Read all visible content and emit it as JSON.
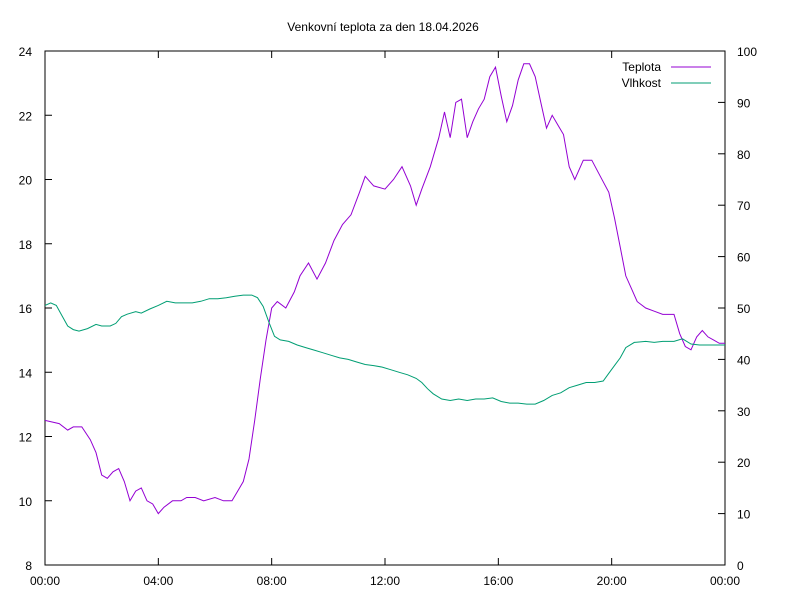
{
  "chart_data": {
    "type": "line",
    "title": "Venkovní teplota za den 18.04.2026",
    "xlabel": "",
    "ylabel": "",
    "y2label": "",
    "grid": false,
    "legend_position": "top-right",
    "x_ticks": [
      "00:00",
      "04:00",
      "08:00",
      "12:00",
      "16:00",
      "20:00",
      "00:00"
    ],
    "xlim": [
      0,
      24
    ],
    "ylim": [
      8,
      24
    ],
    "y_ticks": [
      8,
      10,
      12,
      14,
      16,
      18,
      20,
      22,
      24
    ],
    "y2lim": [
      0,
      100
    ],
    "y2_ticks": [
      0,
      10,
      20,
      30,
      40,
      50,
      60,
      70,
      80,
      90,
      100
    ],
    "series": [
      {
        "name": "Teplota",
        "axis": "left",
        "color": "#9400d3",
        "points": [
          [
            0,
            12.5
          ],
          [
            0.5,
            12.4
          ],
          [
            0.8,
            12.2
          ],
          [
            1.0,
            12.3
          ],
          [
            1.3,
            12.3
          ],
          [
            1.6,
            11.9
          ],
          [
            1.8,
            11.5
          ],
          [
            2.0,
            10.8
          ],
          [
            2.2,
            10.7
          ],
          [
            2.4,
            10.9
          ],
          [
            2.6,
            11.0
          ],
          [
            2.8,
            10.6
          ],
          [
            3.0,
            10.0
          ],
          [
            3.2,
            10.3
          ],
          [
            3.4,
            10.4
          ],
          [
            3.6,
            10.0
          ],
          [
            3.8,
            9.9
          ],
          [
            4.0,
            9.6
          ],
          [
            4.2,
            9.8
          ],
          [
            4.5,
            10.0
          ],
          [
            4.8,
            10.0
          ],
          [
            5.0,
            10.1
          ],
          [
            5.3,
            10.1
          ],
          [
            5.6,
            10.0
          ],
          [
            6.0,
            10.1
          ],
          [
            6.3,
            10.0
          ],
          [
            6.6,
            10.0
          ],
          [
            6.8,
            10.3
          ],
          [
            7.0,
            10.6
          ],
          [
            7.2,
            11.3
          ],
          [
            7.4,
            12.5
          ],
          [
            7.6,
            13.8
          ],
          [
            7.8,
            15.0
          ],
          [
            8.0,
            16.0
          ],
          [
            8.2,
            16.2
          ],
          [
            8.5,
            16.0
          ],
          [
            8.8,
            16.5
          ],
          [
            9.0,
            17.0
          ],
          [
            9.3,
            17.4
          ],
          [
            9.6,
            16.9
          ],
          [
            9.9,
            17.4
          ],
          [
            10.2,
            18.1
          ],
          [
            10.5,
            18.6
          ],
          [
            10.8,
            18.9
          ],
          [
            11.1,
            19.6
          ],
          [
            11.3,
            20.1
          ],
          [
            11.6,
            19.8
          ],
          [
            12.0,
            19.7
          ],
          [
            12.3,
            20.0
          ],
          [
            12.6,
            20.4
          ],
          [
            12.9,
            19.8
          ],
          [
            13.1,
            19.2
          ],
          [
            13.3,
            19.7
          ],
          [
            13.6,
            20.4
          ],
          [
            13.9,
            21.3
          ],
          [
            14.1,
            22.1
          ],
          [
            14.3,
            21.3
          ],
          [
            14.5,
            22.4
          ],
          [
            14.7,
            22.5
          ],
          [
            14.9,
            21.3
          ],
          [
            15.1,
            21.8
          ],
          [
            15.3,
            22.2
          ],
          [
            15.5,
            22.5
          ],
          [
            15.7,
            23.2
          ],
          [
            15.9,
            23.5
          ],
          [
            16.1,
            22.6
          ],
          [
            16.3,
            21.8
          ],
          [
            16.5,
            22.3
          ],
          [
            16.7,
            23.1
          ],
          [
            16.9,
            23.6
          ],
          [
            17.1,
            23.6
          ],
          [
            17.3,
            23.2
          ],
          [
            17.5,
            22.4
          ],
          [
            17.7,
            21.6
          ],
          [
            17.9,
            22.0
          ],
          [
            18.1,
            21.7
          ],
          [
            18.3,
            21.4
          ],
          [
            18.5,
            20.4
          ],
          [
            18.7,
            20.0
          ],
          [
            19.0,
            20.6
          ],
          [
            19.3,
            20.6
          ],
          [
            19.6,
            20.1
          ],
          [
            19.9,
            19.6
          ],
          [
            20.1,
            18.8
          ],
          [
            20.3,
            17.9
          ],
          [
            20.5,
            17.0
          ],
          [
            20.7,
            16.6
          ],
          [
            20.9,
            16.2
          ],
          [
            21.2,
            16.0
          ],
          [
            21.5,
            15.9
          ],
          [
            21.8,
            15.8
          ],
          [
            22.0,
            15.8
          ],
          [
            22.2,
            15.8
          ],
          [
            22.4,
            15.2
          ],
          [
            22.6,
            14.8
          ],
          [
            22.8,
            14.7
          ],
          [
            23.0,
            15.1
          ],
          [
            23.2,
            15.3
          ],
          [
            23.4,
            15.1
          ],
          [
            23.6,
            15.0
          ],
          [
            23.8,
            14.9
          ],
          [
            24.0,
            14.9
          ]
        ]
      },
      {
        "name": "Vlhkost",
        "axis": "right",
        "color": "#009e73",
        "points": [
          [
            0,
            50.5
          ],
          [
            0.2,
            51.0
          ],
          [
            0.4,
            50.5
          ],
          [
            0.6,
            48.5
          ],
          [
            0.8,
            46.5
          ],
          [
            1.0,
            45.8
          ],
          [
            1.2,
            45.5
          ],
          [
            1.5,
            46.0
          ],
          [
            1.8,
            46.8
          ],
          [
            2.0,
            46.5
          ],
          [
            2.3,
            46.5
          ],
          [
            2.5,
            47.0
          ],
          [
            2.7,
            48.3
          ],
          [
            2.9,
            48.8
          ],
          [
            3.2,
            49.3
          ],
          [
            3.4,
            49.0
          ],
          [
            3.7,
            49.8
          ],
          [
            4.0,
            50.5
          ],
          [
            4.3,
            51.3
          ],
          [
            4.6,
            51.0
          ],
          [
            4.9,
            51.0
          ],
          [
            5.2,
            51.0
          ],
          [
            5.5,
            51.3
          ],
          [
            5.8,
            51.8
          ],
          [
            6.1,
            51.8
          ],
          [
            6.4,
            52.0
          ],
          [
            6.7,
            52.3
          ],
          [
            7.0,
            52.5
          ],
          [
            7.3,
            52.5
          ],
          [
            7.5,
            52.0
          ],
          [
            7.7,
            50.3
          ],
          [
            7.9,
            47.3
          ],
          [
            8.1,
            44.5
          ],
          [
            8.3,
            43.8
          ],
          [
            8.6,
            43.5
          ],
          [
            8.9,
            42.8
          ],
          [
            9.2,
            42.3
          ],
          [
            9.5,
            41.8
          ],
          [
            9.8,
            41.3
          ],
          [
            10.1,
            40.8
          ],
          [
            10.4,
            40.3
          ],
          [
            10.7,
            40.0
          ],
          [
            11.0,
            39.5
          ],
          [
            11.3,
            39.0
          ],
          [
            11.6,
            38.8
          ],
          [
            11.9,
            38.5
          ],
          [
            12.2,
            38.0
          ],
          [
            12.5,
            37.5
          ],
          [
            12.8,
            37.0
          ],
          [
            13.1,
            36.3
          ],
          [
            13.3,
            35.5
          ],
          [
            13.5,
            34.3
          ],
          [
            13.7,
            33.3
          ],
          [
            14.0,
            32.3
          ],
          [
            14.3,
            32.0
          ],
          [
            14.6,
            32.3
          ],
          [
            14.9,
            32.0
          ],
          [
            15.2,
            32.3
          ],
          [
            15.5,
            32.3
          ],
          [
            15.8,
            32.5
          ],
          [
            16.1,
            31.8
          ],
          [
            16.4,
            31.5
          ],
          [
            16.7,
            31.5
          ],
          [
            17.0,
            31.3
          ],
          [
            17.3,
            31.3
          ],
          [
            17.6,
            32.0
          ],
          [
            17.9,
            33.0
          ],
          [
            18.2,
            33.5
          ],
          [
            18.5,
            34.5
          ],
          [
            18.8,
            35.0
          ],
          [
            19.1,
            35.5
          ],
          [
            19.4,
            35.5
          ],
          [
            19.7,
            35.8
          ],
          [
            19.9,
            37.3
          ],
          [
            20.1,
            38.8
          ],
          [
            20.3,
            40.3
          ],
          [
            20.5,
            42.3
          ],
          [
            20.8,
            43.3
          ],
          [
            21.2,
            43.5
          ],
          [
            21.5,
            43.3
          ],
          [
            21.8,
            43.5
          ],
          [
            22.2,
            43.5
          ],
          [
            22.5,
            44.0
          ],
          [
            22.8,
            43.0
          ],
          [
            23.1,
            42.8
          ],
          [
            23.4,
            42.8
          ],
          [
            23.7,
            42.8
          ],
          [
            24.0,
            42.8
          ]
        ]
      }
    ]
  }
}
